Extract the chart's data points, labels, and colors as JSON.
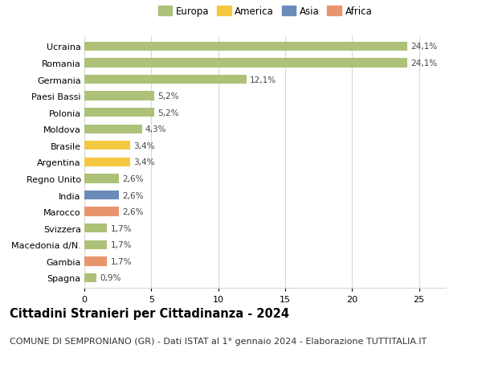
{
  "categories": [
    "Ucraina",
    "Romania",
    "Germania",
    "Paesi Bassi",
    "Polonia",
    "Moldova",
    "Brasile",
    "Argentina",
    "Regno Unito",
    "India",
    "Marocco",
    "Svizzera",
    "Macedonia d/N.",
    "Gambia",
    "Spagna"
  ],
  "values": [
    24.1,
    24.1,
    12.1,
    5.2,
    5.2,
    4.3,
    3.4,
    3.4,
    2.6,
    2.6,
    2.6,
    1.7,
    1.7,
    1.7,
    0.9
  ],
  "labels": [
    "24,1%",
    "24,1%",
    "12,1%",
    "5,2%",
    "5,2%",
    "4,3%",
    "3,4%",
    "3,4%",
    "2,6%",
    "2,6%",
    "2,6%",
    "1,7%",
    "1,7%",
    "1,7%",
    "0,9%"
  ],
  "colors": [
    "#adc178",
    "#adc178",
    "#adc178",
    "#adc178",
    "#adc178",
    "#adc178",
    "#f5c842",
    "#f5c842",
    "#adc178",
    "#6b8cba",
    "#e8956d",
    "#adc178",
    "#adc178",
    "#e8956d",
    "#adc178"
  ],
  "legend_labels": [
    "Europa",
    "America",
    "Asia",
    "Africa"
  ],
  "legend_colors": [
    "#adc178",
    "#f5c842",
    "#6b8cba",
    "#e8956d"
  ],
  "title": "Cittadini Stranieri per Cittadinanza - 2024",
  "subtitle": "COMUNE DI SEMPRONIANO (GR) - Dati ISTAT al 1° gennaio 2024 - Elaborazione TUTTITALIA.IT",
  "xlim": [
    0,
    27
  ],
  "xticks": [
    0,
    5,
    10,
    15,
    20,
    25
  ],
  "background_color": "#ffffff",
  "grid_color": "#d8d8d8",
  "bar_height": 0.55,
  "title_fontsize": 10.5,
  "subtitle_fontsize": 8,
  "label_fontsize": 7.5,
  "tick_fontsize": 8,
  "legend_fontsize": 8.5
}
